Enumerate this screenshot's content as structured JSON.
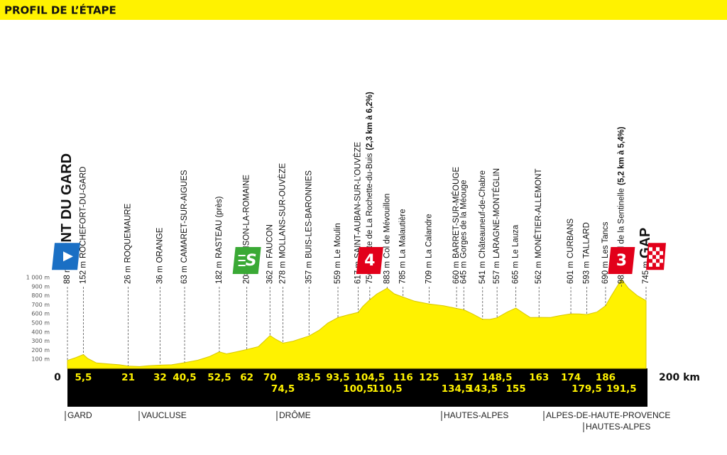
{
  "header": {
    "title": "PROFIL DE L’ÉTAPE"
  },
  "chart_data": {
    "type": "area",
    "color": "#fff200",
    "x": [
      0,
      3,
      5.5,
      7,
      10,
      14,
      18,
      21,
      25,
      28,
      32,
      36,
      40.5,
      45,
      49,
      52.5,
      55,
      58,
      62,
      66,
      68,
      70,
      72,
      74.5,
      78,
      83.5,
      87,
      90,
      93.5,
      97,
      100.5,
      102,
      104.5,
      107,
      110.5,
      113,
      116,
      120,
      125,
      130,
      134.5,
      137,
      140,
      143.5,
      146,
      148.5,
      152,
      155,
      158,
      160,
      163,
      167,
      170,
      174,
      177,
      179.5,
      183,
      186,
      188,
      191.5,
      194,
      197,
      200
    ],
    "values": [
      88,
      120,
      152,
      110,
      60,
      50,
      40,
      26,
      20,
      30,
      36,
      40,
      63,
      90,
      130,
      182,
      160,
      180,
      208,
      240,
      300,
      362,
      320,
      278,
      300,
      357,
      420,
      500,
      559,
      590,
      617,
      680,
      756,
      820,
      883,
      820,
      785,
      740,
      709,
      690,
      660,
      645,
      600,
      541,
      540,
      557,
      620,
      665,
      600,
      560,
      562,
      560,
      580,
      601,
      600,
      593,
      620,
      690,
      800,
      981,
      880,
      800,
      745
    ],
    "xlim": [
      0,
      200
    ],
    "ylim": [
      0,
      1000
    ],
    "xticks": [
      0,
      {
        "value": 200,
        "label": "200 km"
      }
    ],
    "yticks": [
      {
        "value": 100,
        "label": "100 m"
      },
      {
        "value": 200,
        "label": "200 m"
      },
      {
        "value": 300,
        "label": "300 m"
      },
      {
        "value": 400,
        "label": "400 m"
      },
      {
        "value": 500,
        "label": "500 m"
      },
      {
        "value": 600,
        "label": "600 m"
      },
      {
        "value": 700,
        "label": "700 m"
      },
      {
        "value": 800,
        "label": "800 m"
      },
      {
        "value": 900,
        "label": "900 m"
      },
      {
        "value": 1000,
        "label": "1 000 m"
      }
    ],
    "grid": false,
    "start": {
      "altitude": {
        "value": 88,
        "label": "88 m"
      },
      "name": "PONT DU GARD"
    },
    "finish": {
      "altitude": {
        "value": 745,
        "label": "745 m"
      },
      "name": "GAP"
    },
    "waypoints": [
      {
        "km": {
          "value": 5.5,
          "label": "5,5"
        },
        "altitude": {
          "value": 152,
          "label": "152 m"
        },
        "name": "ROCHEFORT-DU-GARD"
      },
      {
        "km": 21,
        "altitude": {
          "value": 26,
          "label": "26 m"
        },
        "name": "ROQUEMAURE"
      },
      {
        "km": 32,
        "altitude": {
          "value": 36,
          "label": "36 m"
        },
        "name": "ORANGE"
      },
      {
        "km": {
          "value": 40.5,
          "label": "40,5"
        },
        "altitude": {
          "value": 63,
          "label": "63 m"
        },
        "name": "CAMARET-SUR-AIGUES"
      },
      {
        "km": {
          "value": 52.5,
          "label": "52,5"
        },
        "altitude": {
          "value": 182,
          "label": "182 m"
        },
        "name": "RASTEAU (près)"
      },
      {
        "km": 62,
        "altitude": {
          "value": 208,
          "label": "208 m"
        },
        "name": "VAISON-LA-ROMAINE",
        "sprint_label": "S"
      },
      {
        "km": 70,
        "altitude": {
          "value": 362,
          "label": "362 m"
        },
        "name": "FAUCON"
      },
      {
        "km": {
          "value": 74.5,
          "label": "74,5"
        },
        "altitude": {
          "value": 278,
          "label": "278 m"
        },
        "name": "MOLLANS-SUR-OUVÈZE"
      },
      {
        "km": {
          "value": 83.5,
          "label": "83,5"
        },
        "altitude": {
          "value": 357,
          "label": "357 m"
        },
        "name": "BUIS-LES-BARONNIES"
      },
      {
        "km": {
          "value": 93.5,
          "label": "93,5"
        },
        "altitude": {
          "value": 559,
          "label": "559 m"
        },
        "name": "Le Moulin"
      },
      {
        "km": {
          "value": 100.5,
          "label": "100,5"
        },
        "altitude": {
          "value": 617,
          "label": "617 m"
        },
        "name": "SAINT-AUBAN-SUR-L’OUVÈZE"
      },
      {
        "km": {
          "value": 104.5,
          "label": "104,5"
        },
        "altitude": {
          "value": 756,
          "label": "756 m"
        },
        "name": "Côte de La Rochette-du-Buis",
        "detail": "(2,3 km à 6,2%)",
        "category": "4"
      },
      {
        "km": {
          "value": 110.5,
          "label": "110,5"
        },
        "altitude": {
          "value": 883,
          "label": "883 m"
        },
        "name": "Col de Mévouillon"
      },
      {
        "km": 116,
        "altitude": {
          "value": 785,
          "label": "785 m"
        },
        "name": "La Malautière"
      },
      {
        "km": 125,
        "altitude": {
          "value": 709,
          "label": "709 m"
        },
        "name": "La Calandre"
      },
      {
        "km": {
          "value": 134.5,
          "label": "134,5"
        },
        "altitude": {
          "value": 660,
          "label": "660 m"
        },
        "name": "BARRET-SUR-MÉOUGE"
      },
      {
        "km": 137,
        "altitude": {
          "value": 645,
          "label": "645 m"
        },
        "name": "Gorges de la Méouge"
      },
      {
        "km": {
          "value": 143.5,
          "label": "143,5"
        },
        "altitude": {
          "value": 541,
          "label": "541 m"
        },
        "name": "Châteauneuf-de-Chabre"
      },
      {
        "km": {
          "value": 148.5,
          "label": "148,5"
        },
        "altitude": {
          "value": 557,
          "label": "557 m"
        },
        "name": "LARAGNE-MONTÉGLIN"
      },
      {
        "km": 155,
        "altitude": {
          "value": 665,
          "label": "665 m"
        },
        "name": "Le Lauza"
      },
      {
        "km": 163,
        "altitude": {
          "value": 562,
          "label": "562 m"
        },
        "name": "MONÊTIER-ALLEMONT"
      },
      {
        "km": 174,
        "altitude": {
          "value": 601,
          "label": "601 m"
        },
        "name": "CURBANS"
      },
      {
        "km": {
          "value": 179.5,
          "label": "179,5"
        },
        "altitude": {
          "value": 593,
          "label": "593 m"
        },
        "name": "TALLARD"
      },
      {
        "km": 186,
        "altitude": {
          "value": 690,
          "label": "690 m"
        },
        "name": "Les Tancs"
      },
      {
        "km": {
          "value": 191.5,
          "label": "191,5"
        },
        "altitude": {
          "value": 981,
          "label": "981 m"
        },
        "name": "Col de la Sentinelle",
        "detail": "(5,2 km à 5,4%)",
        "category": "3"
      }
    ],
    "regions": [
      "GARD",
      "VAUCLUSE",
      "DRÔME",
      "HAUTES-ALPES",
      "ALPES-DE-HAUTE-PROVENCE",
      "HAUTES-ALPES"
    ]
  }
}
